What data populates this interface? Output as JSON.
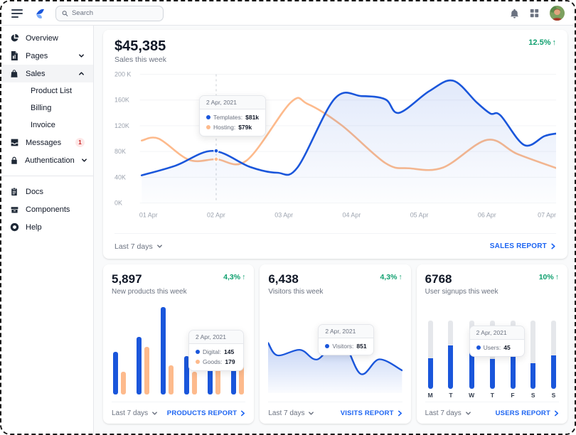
{
  "colors": {
    "primary": "#1A56DB",
    "orange": "#FDBA8C",
    "green": "#0E9F6E",
    "link": "#1C64F2",
    "track": "#E5E7EB",
    "grid": "#F3F4F6",
    "axis_text": "#9CA3AF"
  },
  "icons": {
    "trend_up": "↑"
  },
  "topbar": {
    "search_placeholder": "Search"
  },
  "sidebar": {
    "overview": "Overview",
    "pages": "Pages",
    "sales": "Sales",
    "product_list": "Product List",
    "billing": "Billing",
    "invoice": "Invoice",
    "messages": "Messages",
    "messages_badge": "1",
    "authentication": "Authentication",
    "docs": "Docs",
    "components": "Components",
    "help": "Help"
  },
  "sales_card": {
    "value": "$45,385",
    "subtitle": "Sales this week",
    "delta": "12.5%",
    "tooltip": {
      "date": "2 Apr, 2021",
      "rows": [
        {
          "name": "Templates:",
          "value": "$81k"
        },
        {
          "name": "Hosting:",
          "value": "$79k"
        }
      ]
    },
    "range": "Last 7 days",
    "link": "SALES REPORT"
  },
  "products_card": {
    "value": "5,897",
    "subtitle": "New products this week",
    "delta": "4,3%",
    "tooltip": {
      "date": "2 Apr, 2021",
      "rows": [
        {
          "name": "Digital:",
          "value": "145"
        },
        {
          "name": "Goods:",
          "value": "179"
        }
      ]
    },
    "range": "Last 7 days",
    "link": "PRODUCTS REPORT"
  },
  "visits_card": {
    "value": "6,438",
    "subtitle": "Visitors this week",
    "delta": "4,3%",
    "tooltip": {
      "date": "2 Apr, 2021",
      "rows": [
        {
          "name": "Visitors:",
          "value": "851"
        }
      ]
    },
    "range": "Last 7 days",
    "link": "VISITS REPORT"
  },
  "users_card": {
    "value": "6768",
    "subtitle": "User signups this week",
    "delta": "10%",
    "tooltip": {
      "date": "2 Apr, 2021",
      "rows": [
        {
          "name": "Users:",
          "value": "45"
        }
      ]
    },
    "range": "Last 7 days",
    "link": "USERS REPORT"
  },
  "chart_data": [
    {
      "type": "line",
      "title": "Sales this week ($ thousands)",
      "x_ticks": [
        "01 Apr",
        "02 Apr",
        "03 Apr",
        "04 Apr",
        "05 Apr",
        "06 Apr",
        "07 Apr"
      ],
      "y_ticks": [
        "0K",
        "40K",
        "80K",
        "120K",
        "160K",
        "200 K"
      ],
      "ylim": [
        0,
        200
      ],
      "grid": true,
      "marker_day": 2,
      "series": [
        {
          "name": "Templates",
          "color": "primary",
          "area": true,
          "points": [
            [
              0.9,
              43
            ],
            [
              1.4,
              58
            ],
            [
              1.95,
              81
            ],
            [
              2.5,
              56
            ],
            [
              2.9,
              47
            ],
            [
              3.2,
              55
            ],
            [
              3.75,
              162
            ],
            [
              4.15,
              166
            ],
            [
              4.5,
              161
            ],
            [
              4.7,
              140
            ],
            [
              5.15,
              174
            ],
            [
              5.5,
              190
            ],
            [
              5.85,
              156
            ],
            [
              6.05,
              139
            ],
            [
              6.2,
              136
            ],
            [
              6.55,
              90
            ],
            [
              6.85,
              104
            ],
            [
              7.03,
              108
            ]
          ]
        },
        {
          "name": "Hosting",
          "color": "orange",
          "area": false,
          "points": [
            [
              0.9,
              97
            ],
            [
              1.15,
              100
            ],
            [
              1.6,
              67
            ],
            [
              2.0,
              68
            ],
            [
              2.45,
              66
            ],
            [
              3.1,
              156
            ],
            [
              3.35,
              154
            ],
            [
              3.85,
              121
            ],
            [
              4.5,
              62
            ],
            [
              4.85,
              54
            ],
            [
              5.35,
              55
            ],
            [
              6.0,
              98
            ],
            [
              6.45,
              76
            ],
            [
              7.03,
              54
            ]
          ]
        }
      ]
    },
    {
      "type": "bar",
      "title": "New products this week",
      "ylim": [
        0,
        250
      ],
      "series": [
        {
          "name": "Digital",
          "color": "primary",
          "values": [
            118,
            158,
            240,
            106,
            138,
            140
          ]
        },
        {
          "name": "Goods",
          "color": "orange",
          "values": [
            62,
            130,
            80,
            62,
            136,
            94
          ]
        }
      ]
    },
    {
      "type": "area",
      "title": "Visitors this week",
      "x_pct": [
        0,
        7,
        24,
        37,
        54,
        69,
        83,
        100
      ],
      "y_pct": [
        81,
        56,
        67,
        48,
        90,
        19,
        48,
        26
      ],
      "marker_index": 4
    },
    {
      "type": "bar",
      "title": "User signups this week",
      "categories": [
        "M",
        "T",
        "W",
        "T",
        "F",
        "S",
        "S"
      ],
      "values_pct": [
        45,
        64,
        77,
        44,
        76,
        37,
        49
      ],
      "ylim": [
        0,
        100
      ]
    }
  ]
}
